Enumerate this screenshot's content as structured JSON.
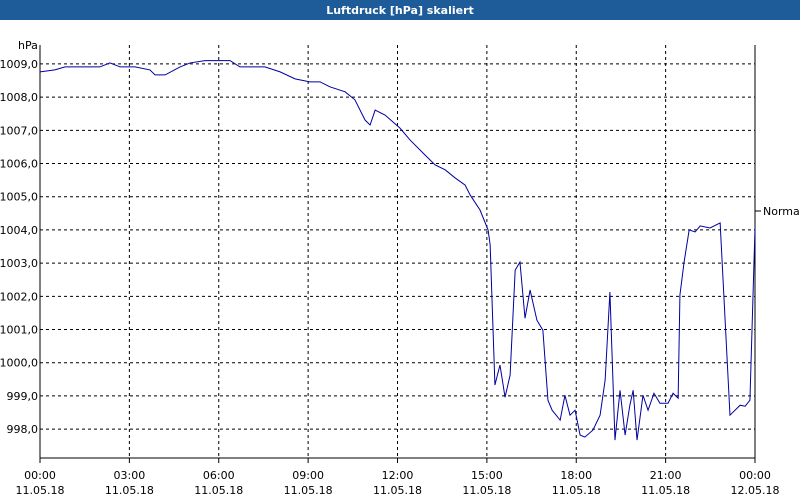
{
  "chart_data": {
    "type": "line",
    "title": "Luftdruck [hPa] skaliert",
    "ylabel": "hPa",
    "annotation": "Normal",
    "xlim": [
      0,
      24
    ],
    "ylim": [
      997.13,
      1009.57
    ],
    "grid": true,
    "xticks": [
      {
        "value": 0,
        "label": "00:00",
        "date": "11.05.18"
      },
      {
        "value": 3,
        "label": "03:00",
        "date": "11.05.18"
      },
      {
        "value": 6,
        "label": "06:00",
        "date": "11.05.18"
      },
      {
        "value": 9,
        "label": "09:00",
        "date": "11.05.18"
      },
      {
        "value": 12,
        "label": "12:00",
        "date": "11.05.18"
      },
      {
        "value": 15,
        "label": "15:00",
        "date": "11.05.18"
      },
      {
        "value": 18,
        "label": "18:00",
        "date": "11.05.18"
      },
      {
        "value": 21,
        "label": "21:00",
        "date": "11.05.18"
      },
      {
        "value": 24,
        "label": "00:00",
        "date": "12.05.18"
      }
    ],
    "yticks": [
      {
        "value": 998,
        "label": "998,0"
      },
      {
        "value": 999,
        "label": "999,0"
      },
      {
        "value": 1000,
        "label": "1000,0"
      },
      {
        "value": 1001,
        "label": "1001,0"
      },
      {
        "value": 1002,
        "label": "1002,0"
      },
      {
        "value": 1003,
        "label": "1003,0"
      },
      {
        "value": 1004,
        "label": "1004,0"
      },
      {
        "value": 1005,
        "label": "1005,0"
      },
      {
        "value": 1006,
        "label": "1006,0"
      },
      {
        "value": 1007,
        "label": "1007,0"
      },
      {
        "value": 1008,
        "label": "1008,0"
      },
      {
        "value": 1009,
        "label": "1009,0"
      }
    ],
    "x": [
      0,
      0.5,
      0.84,
      1.17,
      2.01,
      2.35,
      2.69,
      3.19,
      3.69,
      3.86,
      4.2,
      4.7,
      5.04,
      5.54,
      6.38,
      6.71,
      7.55,
      8.06,
      8.56,
      9.06,
      9.4,
      9.73,
      10.24,
      10.57,
      10.91,
      11.08,
      11.25,
      11.58,
      12.08,
      12.42,
      12.92,
      13.26,
      13.6,
      13.93,
      14.27,
      14.44,
      14.77,
      15.04,
      15.11,
      15.27,
      15.44,
      15.61,
      15.78,
      15.95,
      16.11,
      16.28,
      16.45,
      16.68,
      16.88,
      17.05,
      17.19,
      17.46,
      17.62,
      17.79,
      17.96,
      18.13,
      18.29,
      18.56,
      18.8,
      18.97,
      19.13,
      19.3,
      19.47,
      19.64,
      19.8,
      19.91,
      20.04,
      20.24,
      20.41,
      20.61,
      20.81,
      21.08,
      21.25,
      21.42,
      21.48,
      21.62,
      21.79,
      21.99,
      22.16,
      22.49,
      22.83,
      23.16,
      23.5,
      23.67,
      23.83,
      24
    ],
    "series": [
      {
        "color": "#0000a0",
        "values": [
          1008.76,
          1008.82,
          1008.91,
          1008.91,
          1008.91,
          1009.03,
          1008.91,
          1008.91,
          1008.82,
          1008.67,
          1008.67,
          1008.91,
          1009.03,
          1009.1,
          1009.1,
          1008.91,
          1008.91,
          1008.76,
          1008.55,
          1008.46,
          1008.46,
          1008.31,
          1008.16,
          1007.92,
          1007.31,
          1007.16,
          1007.61,
          1007.46,
          1007.07,
          1006.71,
          1006.26,
          1005.96,
          1005.81,
          1005.57,
          1005.35,
          1005.05,
          1004.6,
          1004.0,
          1003.55,
          999.33,
          999.93,
          998.96,
          999.63,
          1002.79,
          1003.03,
          1001.34,
          1002.19,
          1001.28,
          1000.98,
          998.87,
          998.57,
          998.27,
          999.02,
          998.42,
          998.57,
          997.82,
          997.76,
          997.97,
          998.42,
          999.48,
          1002.13,
          997.67,
          999.17,
          997.82,
          998.72,
          999.17,
          997.67,
          999.02,
          998.57,
          999.08,
          998.78,
          998.78,
          999.08,
          998.93,
          1002.04,
          1003.03,
          1004.0,
          1003.94,
          1004.12,
          1004.06,
          1004.21,
          998.42,
          998.72,
          998.69,
          998.87,
          1004.06
        ]
      }
    ]
  }
}
